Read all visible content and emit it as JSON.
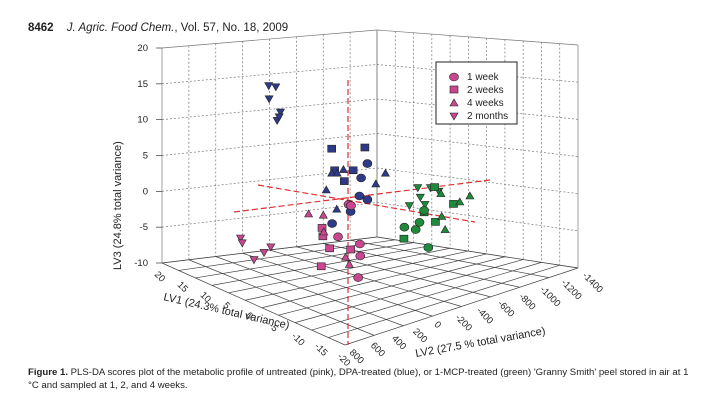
{
  "header": {
    "page_number": "8462",
    "journal": "J. Agric. Food Chem.",
    "volume_info": ", Vol. 57, No. 18, 2009"
  },
  "caption": {
    "label": "Figure 1.",
    "text": "PLS-DA scores plot of the metabolic profile of untreated (pink), DPA-treated (blue), or 1-MCP-treated (green) 'Granny Smith' peel stored in air at 1 °C and sampled at 1, 2, and 4 weeks."
  },
  "chart_data": {
    "type": "scatter",
    "projection": "3d",
    "title": "",
    "axes": {
      "z": {
        "label": "LV3 (24.8% total variance)",
        "range": [
          -10,
          20
        ],
        "ticks": [
          "20",
          "15",
          "10",
          "5",
          "0",
          "-5",
          "-10"
        ]
      },
      "x": {
        "label": "LV1 (24.3% total variance)",
        "range": [
          -20,
          20
        ],
        "ticks": [
          "20",
          "15",
          "10",
          "5",
          "0",
          "-5",
          "-10",
          "-15",
          "-20"
        ]
      },
      "y": {
        "label": "LV2 (27.5 % total variance)",
        "range": [
          -1400,
          800
        ],
        "ticks": [
          "800",
          "600",
          "400",
          "200",
          "0",
          "-200",
          "-400",
          "-600",
          "-800",
          "-1000",
          "-1200",
          "-1400"
        ]
      }
    },
    "grid": true,
    "legend": {
      "position": "top-right",
      "entries": [
        {
          "label": "1 week",
          "marker": "circle"
        },
        {
          "label": "2 weeks",
          "marker": "square"
        },
        {
          "label": "4 weeks",
          "marker": "triangle-up"
        },
        {
          "label": "2 months",
          "marker": "triangle-down"
        }
      ]
    },
    "colors": {
      "untreated": "#c8478f",
      "DPA": "#2e3a87",
      "1-MCP": "#1e8a3a",
      "legend": "#c8478f",
      "reference": "#e03030"
    },
    "series": [
      {
        "name": "DPA-treated",
        "color_key": "DPA",
        "points": [
          {
            "m": "triangle-down",
            "sx": 0.235,
            "sy": 0.19
          },
          {
            "m": "triangle-down",
            "sx": 0.252,
            "sy": 0.195
          },
          {
            "m": "triangle-down",
            "sx": 0.236,
            "sy": 0.245
          },
          {
            "m": "triangle-down",
            "sx": 0.263,
            "sy": 0.3
          },
          {
            "m": "triangle-down",
            "sx": 0.255,
            "sy": 0.335
          },
          {
            "m": "triangle-down",
            "sx": 0.26,
            "sy": 0.32
          },
          {
            "m": "square",
            "sx": 0.385,
            "sy": 0.455
          },
          {
            "m": "square",
            "sx": 0.464,
            "sy": 0.45
          },
          {
            "m": "square",
            "sx": 0.436,
            "sy": 0.545
          },
          {
            "m": "square",
            "sx": 0.415,
            "sy": 0.59
          },
          {
            "m": "square",
            "sx": 0.392,
            "sy": 0.545
          },
          {
            "m": "circle",
            "sx": 0.47,
            "sy": 0.515
          },
          {
            "m": "circle",
            "sx": 0.455,
            "sy": 0.575
          },
          {
            "m": "circle",
            "sx": 0.451,
            "sy": 0.65
          },
          {
            "m": "circle",
            "sx": 0.47,
            "sy": 0.665
          },
          {
            "m": "circle",
            "sx": 0.386,
            "sy": 0.765
          },
          {
            "m": "circle",
            "sx": 0.43,
            "sy": 0.715
          },
          {
            "m": "triangle-up",
            "sx": 0.385,
            "sy": 0.555
          },
          {
            "m": "triangle-up",
            "sx": 0.398,
            "sy": 0.555
          },
          {
            "m": "triangle-up",
            "sx": 0.413,
            "sy": 0.54
          },
          {
            "m": "triangle-up",
            "sx": 0.513,
            "sy": 0.555
          },
          {
            "m": "triangle-up",
            "sx": 0.49,
            "sy": 0.6
          },
          {
            "m": "triangle-up",
            "sx": 0.372,
            "sy": 0.625
          },
          {
            "m": "triangle-up",
            "sx": 0.397,
            "sy": 0.705
          }
        ]
      },
      {
        "name": "Untreated",
        "color_key": "untreated",
        "points": [
          {
            "m": "circle",
            "sx": 0.425,
            "sy": 0.685
          },
          {
            "m": "circle",
            "sx": 0.431,
            "sy": 0.69
          },
          {
            "m": "circle",
            "sx": 0.4,
            "sy": 0.82
          },
          {
            "m": "circle",
            "sx": 0.452,
            "sy": 0.85
          },
          {
            "m": "circle",
            "sx": 0.453,
            "sy": 0.9
          },
          {
            "m": "circle",
            "sx": 0.448,
            "sy": 0.99
          },
          {
            "m": "square",
            "sx": 0.362,
            "sy": 0.785
          },
          {
            "m": "square",
            "sx": 0.364,
            "sy": 0.82
          },
          {
            "m": "square",
            "sx": 0.38,
            "sy": 0.87
          },
          {
            "m": "square",
            "sx": 0.43,
            "sy": 0.875
          },
          {
            "m": "square",
            "sx": 0.36,
            "sy": 0.945
          },
          {
            "m": "triangle-up",
            "sx": 0.33,
            "sy": 0.725
          },
          {
            "m": "triangle-up",
            "sx": 0.365,
            "sy": 0.73
          },
          {
            "m": "triangle-up",
            "sx": 0.366,
            "sy": 0.8
          },
          {
            "m": "triangle-up",
            "sx": 0.418,
            "sy": 0.905
          },
          {
            "m": "triangle-up",
            "sx": 0.427,
            "sy": 0.935
          },
          {
            "m": "triangle-down",
            "sx": 0.168,
            "sy": 0.825
          },
          {
            "m": "triangle-down",
            "sx": 0.172,
            "sy": 0.845
          },
          {
            "m": "triangle-down",
            "sx": 0.224,
            "sy": 0.885
          },
          {
            "m": "triangle-down",
            "sx": 0.24,
            "sy": 0.862
          },
          {
            "m": "triangle-down",
            "sx": 0.2,
            "sy": 0.915
          }
        ]
      },
      {
        "name": "1-MCP-treated",
        "color_key": "1-MCP",
        "points": [
          {
            "m": "triangle-down",
            "sx": 0.59,
            "sy": 0.615
          },
          {
            "m": "triangle-down",
            "sx": 0.62,
            "sy": 0.615
          },
          {
            "m": "triangle-down",
            "sx": 0.596,
            "sy": 0.655
          },
          {
            "m": "triangle-down",
            "sx": 0.607,
            "sy": 0.685
          },
          {
            "m": "triangle-down",
            "sx": 0.57,
            "sy": 0.69
          },
          {
            "m": "triangle-down",
            "sx": 0.64,
            "sy": 0.63
          },
          {
            "m": "square",
            "sx": 0.63,
            "sy": 0.615
          },
          {
            "m": "square",
            "sx": 0.675,
            "sy": 0.685
          },
          {
            "m": "square",
            "sx": 0.632,
            "sy": 0.76
          },
          {
            "m": "square",
            "sx": 0.557,
            "sy": 0.83
          },
          {
            "m": "square",
            "sx": 0.605,
            "sy": 0.72
          },
          {
            "m": "circle",
            "sx": 0.605,
            "sy": 0.71
          },
          {
            "m": "circle",
            "sx": 0.558,
            "sy": 0.78
          },
          {
            "m": "circle",
            "sx": 0.594,
            "sy": 0.76
          },
          {
            "m": "circle",
            "sx": 0.585,
            "sy": 0.79
          },
          {
            "m": "circle",
            "sx": 0.615,
            "sy": 0.865
          },
          {
            "m": "triangle-up",
            "sx": 0.645,
            "sy": 0.64
          },
          {
            "m": "triangle-up",
            "sx": 0.69,
            "sy": 0.675
          },
          {
            "m": "triangle-up",
            "sx": 0.714,
            "sy": 0.65
          },
          {
            "m": "triangle-up",
            "sx": 0.647,
            "sy": 0.735
          },
          {
            "m": "triangle-up",
            "sx": 0.655,
            "sy": 0.79
          }
        ]
      }
    ]
  }
}
